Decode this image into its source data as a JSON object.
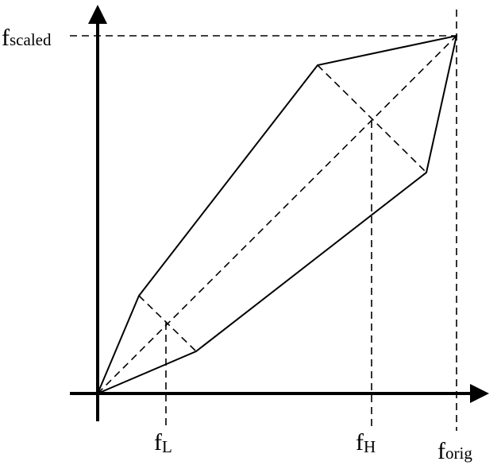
{
  "labels": {
    "y_axis": {
      "main": "f",
      "sub": "scaled"
    },
    "x_axis": {
      "main": "f",
      "sub": "orig"
    },
    "f_low": {
      "main": "f",
      "sub": "L"
    },
    "f_high": {
      "main": "f",
      "sub": "H"
    }
  }
}
